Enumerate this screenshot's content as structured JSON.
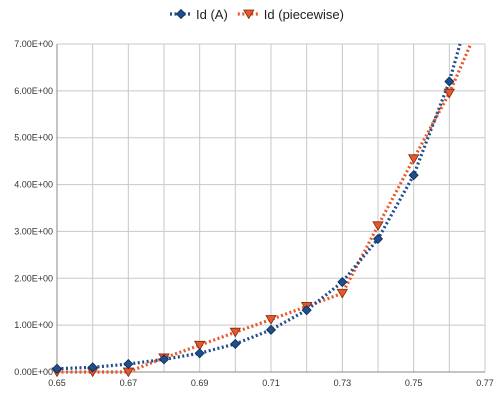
{
  "chart_data": {
    "type": "line",
    "title": "",
    "xlabel": "",
    "ylabel": "",
    "xlim": [
      0.65,
      0.77
    ],
    "ylim": [
      0,
      7
    ],
    "x_ticks": [
      0.65,
      0.67,
      0.69,
      0.71,
      0.73,
      0.75,
      0.77
    ],
    "x_tick_labels": [
      "0.65",
      "0.67",
      "0.69",
      "0.71",
      "0.73",
      "0.75",
      "0.77"
    ],
    "x_gridlines": [
      0.65,
      0.66,
      0.67,
      0.68,
      0.69,
      0.7,
      0.71,
      0.72,
      0.73,
      0.74,
      0.75,
      0.76,
      0.77
    ],
    "y_ticks": [
      0,
      1,
      2,
      3,
      4,
      5,
      6,
      7
    ],
    "y_tick_labels": [
      "0.00E+00",
      "1.00E+00",
      "2.00E+00",
      "3.00E+00",
      "4.00E+00",
      "5.00E+00",
      "6.00E+00",
      "7.00E+00"
    ],
    "grid": true,
    "legend_position": "top",
    "series": [
      {
        "name": "Id (A)",
        "color": "#1f4e8c",
        "marker": "diamond",
        "line_style": "dotted",
        "x": [
          0.65,
          0.66,
          0.67,
          0.68,
          0.69,
          0.7,
          0.71,
          0.72,
          0.73,
          0.74,
          0.75,
          0.76,
          0.763
        ],
        "y": [
          0.07,
          0.1,
          0.17,
          0.27,
          0.4,
          0.6,
          0.9,
          1.32,
          1.92,
          2.84,
          4.2,
          6.2,
          7.0
        ]
      },
      {
        "name": "Id (piecewise)",
        "color": "#e8562a",
        "marker": "triangle-down",
        "line_style": "dotted",
        "x": [
          0.65,
          0.66,
          0.67,
          0.68,
          0.69,
          0.7,
          0.71,
          0.72,
          0.73,
          0.74,
          0.75,
          0.76,
          0.766
        ],
        "y": [
          0.0,
          0.0,
          0.0,
          0.3,
          0.57,
          0.85,
          1.12,
          1.4,
          1.68,
          3.12,
          4.55,
          5.95,
          7.0
        ]
      }
    ]
  }
}
